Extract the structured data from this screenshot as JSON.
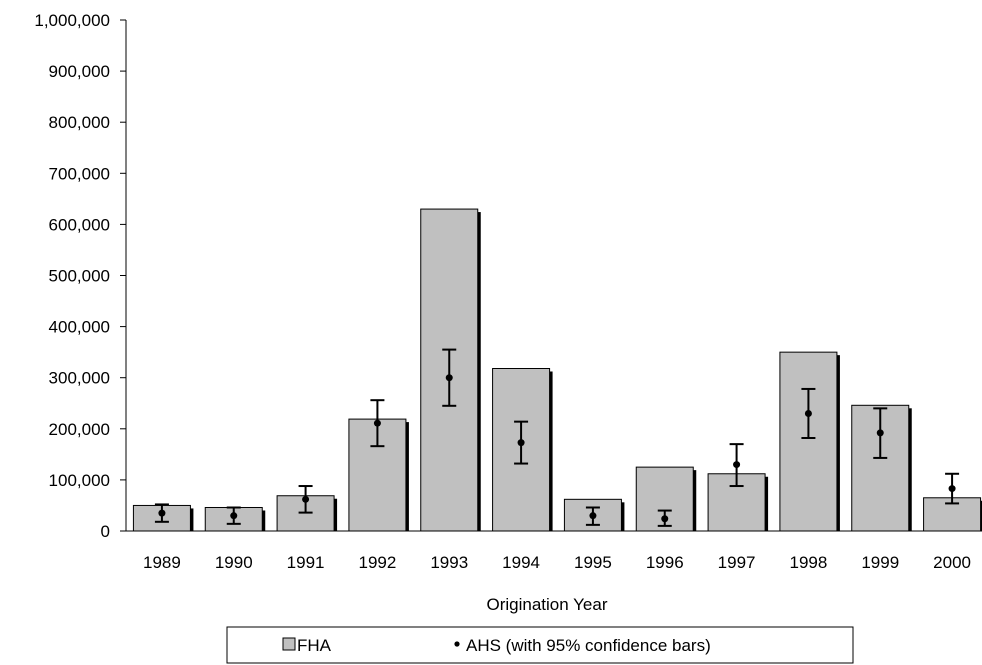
{
  "chart_data": {
    "type": "bar",
    "title": "",
    "xlabel": "Origination Year",
    "ylabel": "",
    "ylim": [
      0,
      1000000
    ],
    "yticks": [
      0,
      100000,
      200000,
      300000,
      400000,
      500000,
      600000,
      700000,
      800000,
      900000,
      1000000
    ],
    "ytick_labels": [
      "0",
      "100,000",
      "200,000",
      "300,000",
      "400,000",
      "500,000",
      "600,000",
      "700,000",
      "800,000",
      "900,000",
      "1,000,000"
    ],
    "categories": [
      "1989",
      "1990",
      "1991",
      "1992",
      "1993",
      "1994",
      "1995",
      "1996",
      "1997",
      "1998",
      "1999",
      "2000"
    ],
    "grid": false,
    "legend_position": "bottom",
    "series": [
      {
        "name": "FHA",
        "kind": "bar",
        "color": "#c0c0c0",
        "values": [
          50000,
          46000,
          69000,
          219000,
          630000,
          318000,
          62000,
          125000,
          112000,
          350000,
          246000,
          65000
        ]
      },
      {
        "name": "AHS (with 95% confidence bars)",
        "kind": "point_errorbar",
        "color": "#000000",
        "values": [
          35000,
          30000,
          62000,
          211000,
          300000,
          173000,
          30000,
          24000,
          130000,
          230000,
          192000,
          83000
        ],
        "lower": [
          18000,
          14000,
          36000,
          166000,
          245000,
          132000,
          12000,
          10000,
          88000,
          182000,
          143000,
          54000
        ],
        "upper": [
          52000,
          46000,
          88000,
          256000,
          355000,
          214000,
          46000,
          40000,
          170000,
          278000,
          240000,
          112000
        ]
      }
    ]
  }
}
